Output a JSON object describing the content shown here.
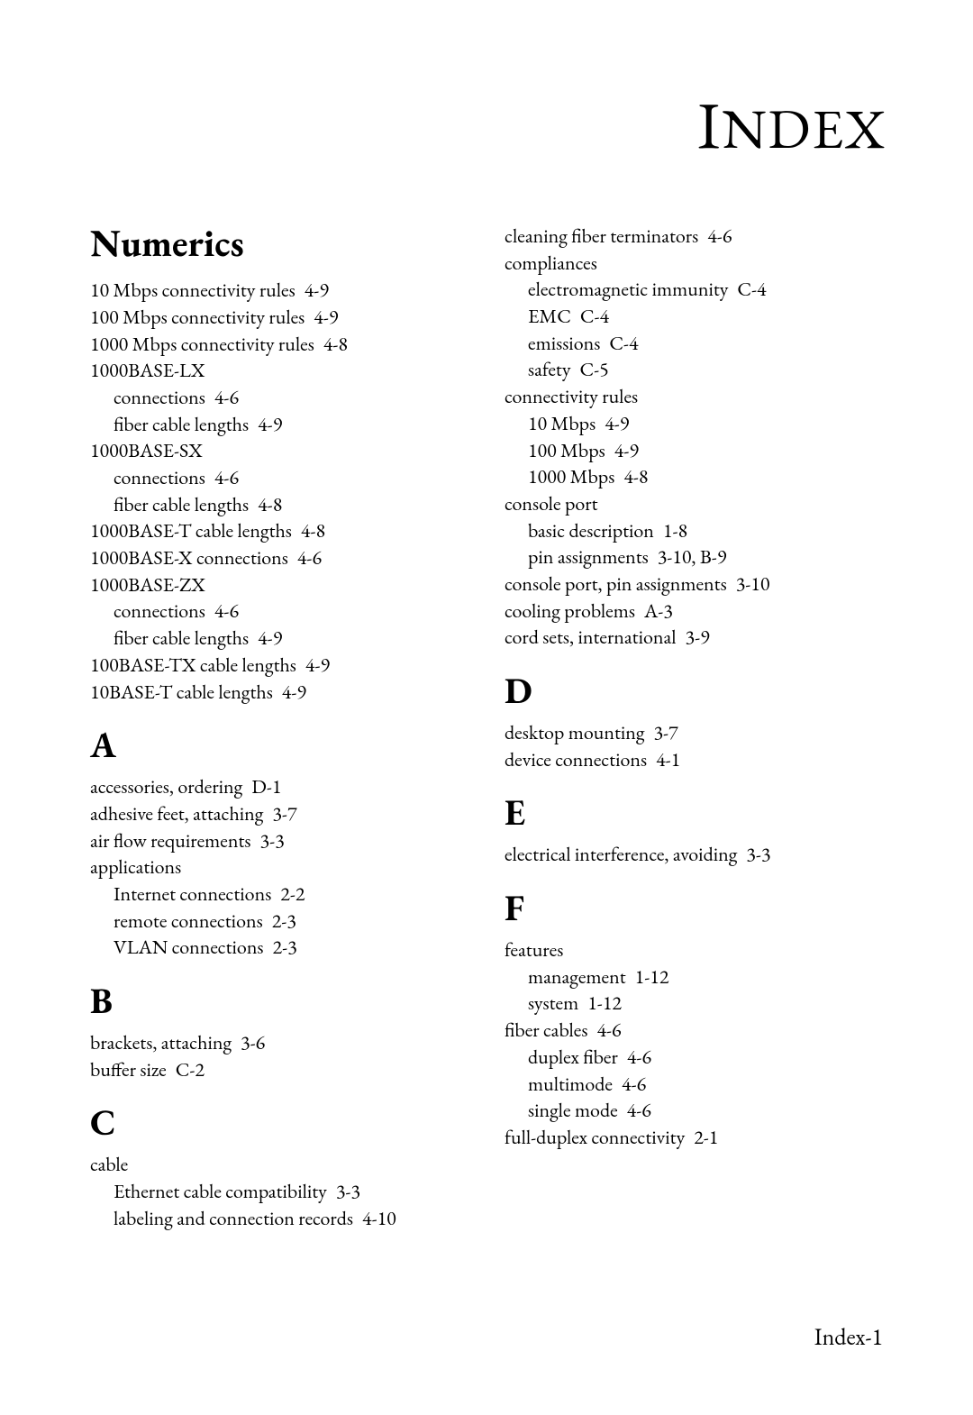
{
  "page_title_text": "Index",
  "page_number": "Index-1",
  "left": [
    {
      "type": "bighead",
      "text": "Numerics"
    },
    {
      "type": "entry",
      "text": "10 Mbps connectivity rules",
      "pg": "4-9"
    },
    {
      "type": "entry",
      "text": "100 Mbps connectivity rules",
      "pg": "4-9"
    },
    {
      "type": "entry",
      "text": "1000 Mbps connectivity rules",
      "pg": "4-8"
    },
    {
      "type": "entry",
      "text": "1000BASE-LX"
    },
    {
      "type": "sub",
      "text": "connections",
      "pg": "4-6"
    },
    {
      "type": "sub",
      "text": "fiber cable lengths",
      "pg": "4-9"
    },
    {
      "type": "entry",
      "text": "1000BASE-SX"
    },
    {
      "type": "sub",
      "text": "connections",
      "pg": "4-6"
    },
    {
      "type": "sub",
      "text": "fiber cable lengths",
      "pg": "4-8"
    },
    {
      "type": "entry",
      "text": "1000BASE-T cable lengths",
      "pg": "4-8"
    },
    {
      "type": "entry",
      "text": "1000BASE-X connections",
      "pg": "4-6"
    },
    {
      "type": "entry",
      "text": "1000BASE-ZX"
    },
    {
      "type": "sub",
      "text": "connections",
      "pg": "4-6"
    },
    {
      "type": "sub",
      "text": "fiber cable lengths",
      "pg": "4-9"
    },
    {
      "type": "entry",
      "text": "100BASE-TX cable lengths",
      "pg": "4-9"
    },
    {
      "type": "entry",
      "text": "10BASE-T cable lengths",
      "pg": "4-9"
    },
    {
      "type": "head",
      "text": "A"
    },
    {
      "type": "entry",
      "text": "accessories, ordering",
      "pg": "D-1"
    },
    {
      "type": "entry",
      "text": "adhesive feet, attaching",
      "pg": "3-7"
    },
    {
      "type": "entry",
      "text": "air flow requirements",
      "pg": "3-3"
    },
    {
      "type": "entry",
      "text": "applications"
    },
    {
      "type": "sub",
      "text": "Internet connections",
      "pg": "2-2"
    },
    {
      "type": "sub",
      "text": "remote connections",
      "pg": "2-3"
    },
    {
      "type": "sub",
      "text": "VLAN connections",
      "pg": "2-3"
    },
    {
      "type": "head",
      "text": "B"
    },
    {
      "type": "entry",
      "text": "brackets, attaching",
      "pg": "3-6"
    },
    {
      "type": "entry",
      "text": "buffer size",
      "pg": "C-2"
    },
    {
      "type": "head",
      "text": "C"
    },
    {
      "type": "entry",
      "text": "cable"
    },
    {
      "type": "sub",
      "text": "Ethernet cable compatibility",
      "pg": "3-3"
    },
    {
      "type": "sub",
      "text": "labeling and connection records",
      "pg": "4-10"
    }
  ],
  "right": [
    {
      "type": "entry",
      "text": "cleaning fiber terminators",
      "pg": "4-6"
    },
    {
      "type": "entry",
      "text": "compliances"
    },
    {
      "type": "sub",
      "text": "electromagnetic immunity",
      "pg": "C-4"
    },
    {
      "type": "sub",
      "text": "EMC",
      "pg": "C-4"
    },
    {
      "type": "sub",
      "text": "emissions",
      "pg": "C-4"
    },
    {
      "type": "sub",
      "text": "safety",
      "pg": "C-5"
    },
    {
      "type": "entry",
      "text": "connectivity rules"
    },
    {
      "type": "sub",
      "text": "10 Mbps",
      "pg": "4-9"
    },
    {
      "type": "sub",
      "text": "100 Mbps",
      "pg": "4-9"
    },
    {
      "type": "sub",
      "text": "1000 Mbps",
      "pg": "4-8"
    },
    {
      "type": "entry",
      "text": "console port"
    },
    {
      "type": "sub",
      "text": "basic description",
      "pg": "1-8"
    },
    {
      "type": "sub",
      "text": "pin assignments",
      "pg": "3-10, B-9"
    },
    {
      "type": "entry",
      "text": "console port, pin assignments",
      "pg": "3-10"
    },
    {
      "type": "entry",
      "text": "cooling problems",
      "pg": "A-3"
    },
    {
      "type": "entry",
      "text": "cord sets, international",
      "pg": "3-9"
    },
    {
      "type": "head",
      "text": "D"
    },
    {
      "type": "entry",
      "text": "desktop mounting",
      "pg": "3-7"
    },
    {
      "type": "entry",
      "text": "device connections",
      "pg": "4-1"
    },
    {
      "type": "head",
      "text": "E"
    },
    {
      "type": "entry",
      "text": "electrical interference, avoiding",
      "pg": "3-3"
    },
    {
      "type": "head",
      "text": "F"
    },
    {
      "type": "entry",
      "text": "features"
    },
    {
      "type": "sub",
      "text": "management",
      "pg": "1-12"
    },
    {
      "type": "sub",
      "text": "system",
      "pg": "1-12"
    },
    {
      "type": "entry",
      "text": "fiber cables",
      "pg": "4-6"
    },
    {
      "type": "sub",
      "text": "duplex fiber",
      "pg": "4-6"
    },
    {
      "type": "sub",
      "text": "multimode",
      "pg": "4-6"
    },
    {
      "type": "sub",
      "text": "single mode",
      "pg": "4-6"
    },
    {
      "type": "entry",
      "text": "full-duplex connectivity",
      "pg": "2-1"
    }
  ]
}
